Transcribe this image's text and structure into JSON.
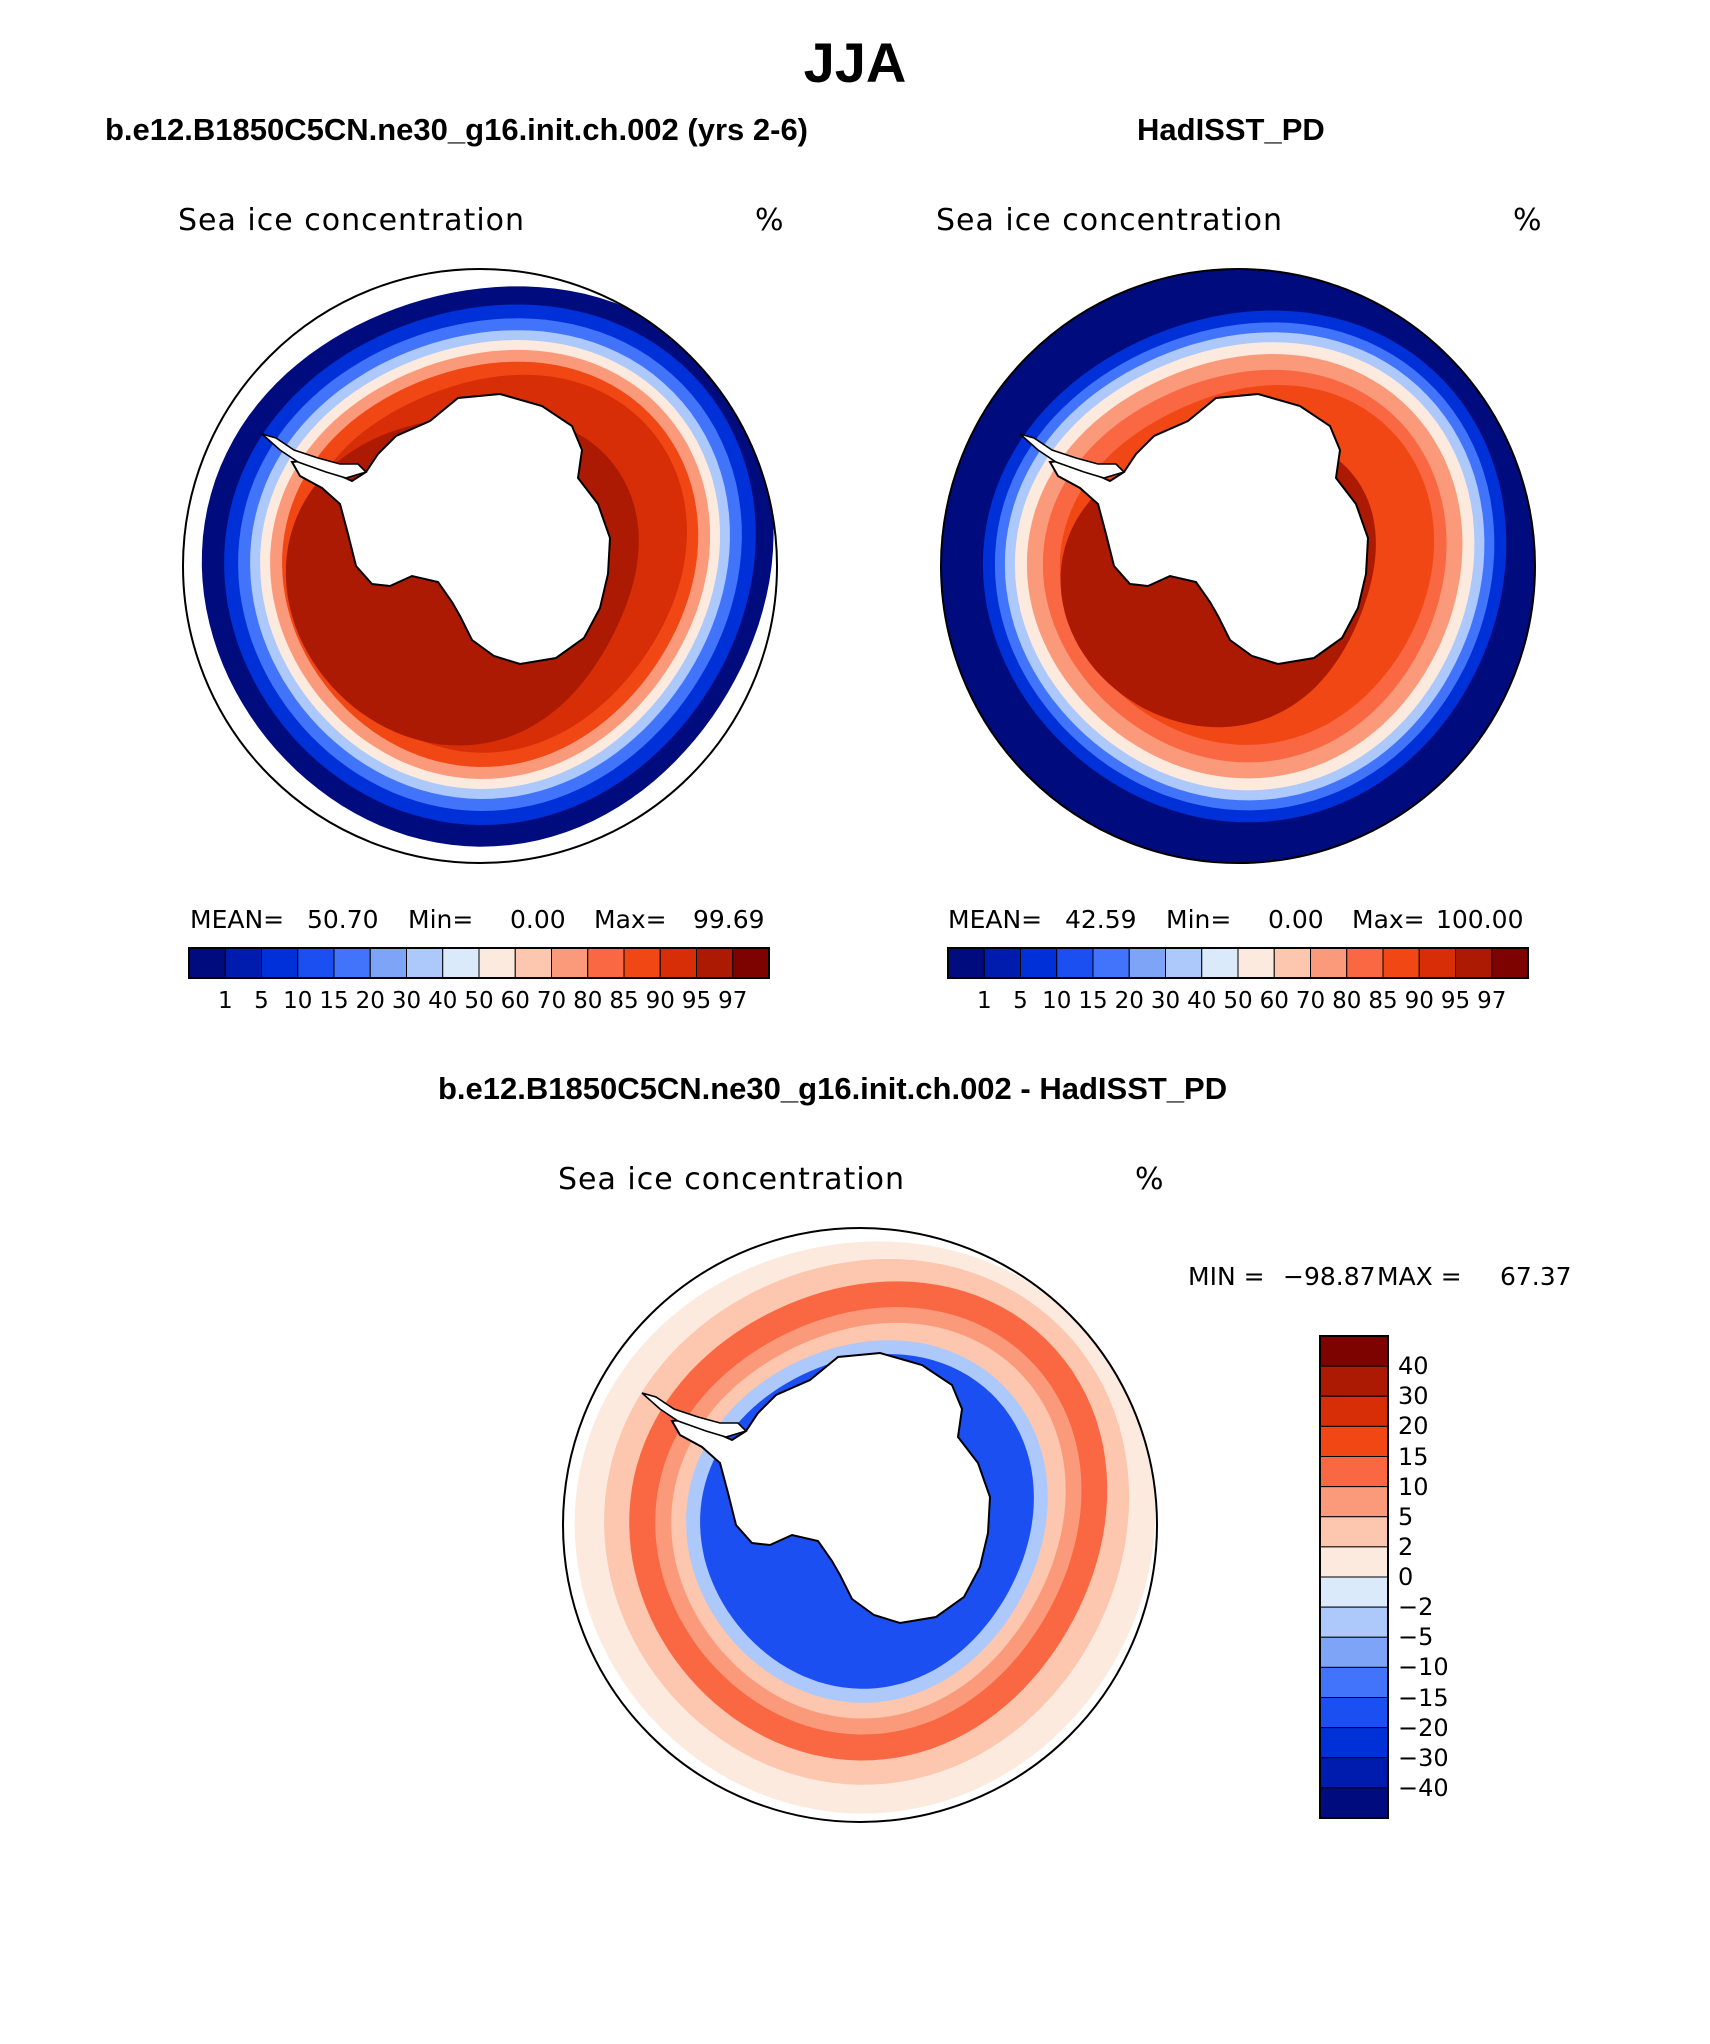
{
  "figure": {
    "title": "JJA"
  },
  "colors": {
    "red_blue_16": [
      "#000c7d",
      "#001cae",
      "#0031d8",
      "#1b4ff1",
      "#4174fb",
      "#7ea4f7",
      "#adc8fb",
      "#dbeafb",
      "#fdeadf",
      "#fdc6ae",
      "#fb9a7b",
      "#f96842",
      "#f04715",
      "#d72e08",
      "#ad1a03",
      "#7d0300"
    ],
    "diff_16": [
      "#000c7d",
      "#001cae",
      "#0031d8",
      "#1b4ff1",
      "#4174fb",
      "#7ea4f7",
      "#adc8fb",
      "#dbeafb",
      "#fdeadf",
      "#fdc6ae",
      "#fb9a7b",
      "#f96842",
      "#f04715",
      "#d72e08",
      "#ad1a03",
      "#7d0300"
    ]
  },
  "panels": [
    {
      "id": "model",
      "title": "b.e12.B1850C5CN.ne30_g16.init.ch.002 (yrs 2-6)",
      "variable": "Sea ice concentration",
      "units": "%",
      "mean_label": "MEAN=",
      "mean": "50.70",
      "min_label": "Min=",
      "min": "0.00",
      "max_label": "Max=",
      "max": "99.69",
      "levels": [
        "1",
        "5",
        "10",
        "15",
        "20",
        "30",
        "40",
        "50",
        "60",
        "70",
        "80",
        "85",
        "90",
        "95",
        "97"
      ]
    },
    {
      "id": "obs",
      "title": "HadISST_PD",
      "variable": "Sea ice concentration",
      "units": "%",
      "mean_label": "MEAN=",
      "mean": "42.59",
      "min_label": "Min=",
      "min": "0.00",
      "max_label": "Max=",
      "max": "100.00",
      "levels": [
        "1",
        "5",
        "10",
        "15",
        "20",
        "30",
        "40",
        "50",
        "60",
        "70",
        "80",
        "85",
        "90",
        "95",
        "97"
      ]
    },
    {
      "id": "diff",
      "title": "b.e12.B1850C5CN.ne30_g16.init.ch.002 - HadISST_PD",
      "variable": "Sea ice concentration",
      "units": "%",
      "min_label": "MIN =",
      "min": "−98.87",
      "max_label": "MAX =",
      "max": "67.37",
      "levels": [
        "40",
        "30",
        "20",
        "15",
        "10",
        "5",
        "2",
        "0",
        "−2",
        "−5",
        "−10",
        "−15",
        "−20",
        "−30",
        "−40"
      ]
    }
  ]
}
